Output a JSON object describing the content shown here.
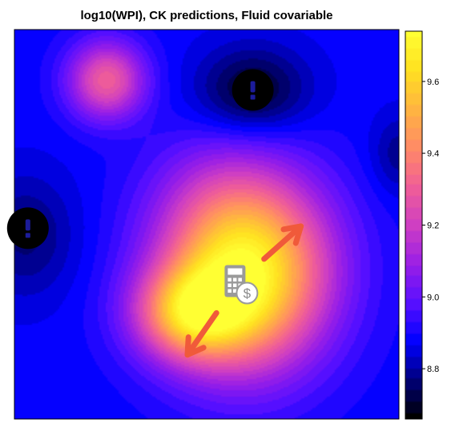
{
  "chart_data": {
    "type": "heatmap",
    "title": "log10(WPI), CK predictions, Fluid covariable",
    "xlabel": "",
    "ylabel": "",
    "colorbar": {
      "min": 8.66,
      "max": 9.74,
      "ticks": [
        8.8,
        9.0,
        9.2,
        9.4,
        9.6
      ],
      "tick_labels": [
        "8.8",
        "9.0",
        "9.2",
        "9.4",
        "9.6"
      ],
      "colors": [
        "#000000",
        "#00007a",
        "#0000ff",
        "#5a10ff",
        "#9a1ee6",
        "#cf3fc2",
        "#f15f96",
        "#ff8a66",
        "#ffb640",
        "#ffe020",
        "#ffff33"
      ]
    },
    "grid": false,
    "surface_features": [
      {
        "kind": "maximum",
        "x": 0.6,
        "y": 0.38,
        "value": 9.74,
        "sx": 0.15,
        "sy": 0.17
      },
      {
        "kind": "maximum",
        "x": 0.46,
        "y": 0.27,
        "value": 0.5,
        "sx": 0.1,
        "sy": 0.08
      },
      {
        "kind": "maximum",
        "x": 0.24,
        "y": 0.87,
        "value": 0.42,
        "sx": 0.07,
        "sy": 0.07
      },
      {
        "kind": "minimum",
        "x": 0.62,
        "y": 0.84,
        "value": -0.2,
        "sx": 0.1,
        "sy": 0.08
      },
      {
        "kind": "minimum",
        "x": 0.03,
        "y": 0.47,
        "value": -0.12,
        "sx": 0.09,
        "sy": 0.11
      },
      {
        "kind": "minimum",
        "x": 1.0,
        "y": 0.68,
        "value": -0.1,
        "sx": 0.05,
        "sy": 0.07
      },
      {
        "kind": "maximum",
        "x": 0.5,
        "y": 0.6,
        "value": 0.05,
        "sx": 0.12,
        "sy": 0.1
      }
    ],
    "markers": [
      {
        "name": "warning-marker-top",
        "symbol": "!",
        "x": 0.62,
        "y": 0.845
      },
      {
        "name": "warning-marker-left",
        "symbol": "!",
        "x": 0.035,
        "y": 0.49
      }
    ],
    "annotation": {
      "icon": "calculator-dollar-icon",
      "dollar_symbol": "$",
      "arrow_color": "#f05a3a",
      "center_x": 0.58,
      "center_y": 0.35,
      "arrow_end_x": 0.45,
      "arrow_end_y": 0.165,
      "arrow_start_x": 0.745,
      "arrow_start_y": 0.495
    }
  }
}
